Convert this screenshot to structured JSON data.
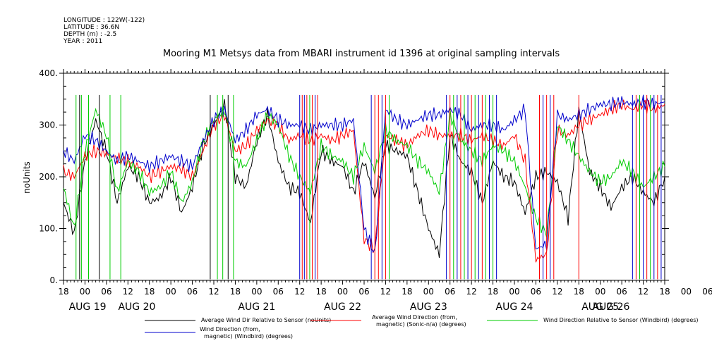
{
  "header": {
    "meta_lines": [
      "LONGITUDE : 122W(-122)",
      "LATITUDE : 36.6N",
      "DEPTH (m) : -2.5",
      "YEAR : 2011"
    ],
    "title": "Mooring M1 Metsys data from MBARI instrument id 1396 at original sampling intervals"
  },
  "chart_data": {
    "type": "line",
    "title": "Mooring M1 Metsys data from MBARI instrument id 1396 at original sampling intervals",
    "ylabel": "noUnits",
    "ylim": [
      0,
      400
    ],
    "yticks": [
      "0.",
      "100.",
      "200.",
      "300.",
      "400."
    ],
    "xlim_hours": [
      0,
      168
    ],
    "x_tick_labels": [
      "18",
      "00",
      "06",
      "12",
      "18",
      "00",
      "06",
      "12",
      "18",
      "00",
      "06",
      "12",
      "18",
      "00",
      "06",
      "12",
      "18",
      "00",
      "06",
      "12",
      "18",
      "00",
      "06",
      "12",
      "18",
      "00",
      "06",
      "12",
      "18",
      "00",
      "06",
      "12",
      "18"
    ],
    "date_labels": [
      "AUG 19",
      "AUG 20",
      "AUG 21",
      "AUG 22",
      "AUG 23",
      "AUG 24",
      "AUG 25",
      "AUG 26"
    ],
    "grid": false,
    "legend_position": "bottom",
    "series": [
      {
        "name": "Average Wind Dir Relative to Sensor (noUnits)",
        "color": "#000000",
        "x": [
          0,
          3,
          6,
          9,
          12,
          15,
          18,
          21,
          24,
          27,
          30,
          33,
          36,
          39,
          42,
          45,
          48,
          51,
          54,
          57,
          60,
          63,
          66,
          69,
          72,
          75,
          78,
          81,
          84,
          87,
          90,
          93,
          96,
          99,
          102,
          105,
          108,
          111,
          114,
          117,
          120,
          123,
          126,
          129,
          132,
          135,
          138,
          141,
          144,
          147,
          150,
          153,
          156,
          159,
          162,
          165,
          168
        ],
        "y": [
          150,
          90,
          230,
          310,
          250,
          150,
          220,
          200,
          150,
          160,
          200,
          130,
          180,
          260,
          300,
          340,
          200,
          180,
          270,
          320,
          230,
          180,
          170,
          110,
          250,
          230,
          220,
          170,
          230,
          160,
          260,
          250,
          240,
          170,
          100,
          50,
          280,
          230,
          210,
          150,
          230,
          200,
          190,
          130,
          200,
          210,
          190,
          120,
          330,
          210,
          180,
          140,
          180,
          200,
          170,
          150,
          200
        ]
      },
      {
        "name": "Average Wind Direction (from, magnetic) (Sonic-n/a) (degrees)",
        "color": "#ff0000",
        "x": [
          0,
          3,
          6,
          9,
          12,
          15,
          18,
          21,
          24,
          27,
          30,
          33,
          36,
          39,
          42,
          45,
          48,
          51,
          54,
          57,
          60,
          63,
          66,
          69,
          72,
          75,
          78,
          81,
          84,
          87,
          90,
          93,
          96,
          99,
          102,
          105,
          108,
          111,
          114,
          117,
          120,
          123,
          126,
          129,
          132,
          135,
          138,
          141,
          144,
          147,
          150,
          153,
          156,
          159,
          162,
          165,
          168
        ],
        "y": [
          210,
          200,
          240,
          250,
          245,
          235,
          230,
          220,
          200,
          210,
          220,
          215,
          200,
          250,
          300,
          320,
          250,
          260,
          290,
          310,
          300,
          270,
          280,
          270,
          280,
          270,
          280,
          290,
          80,
          60,
          280,
          270,
          260,
          280,
          290,
          280,
          280,
          280,
          270,
          280,
          270,
          260,
          280,
          230,
          40,
          50,
          290,
          280,
          300,
          310,
          320,
          330,
          340,
          330,
          340,
          330,
          340
        ]
      },
      {
        "name": "Wind Direction Relative to Sensor (Windbird) (degrees)",
        "color": "#00cc00",
        "x": [
          0,
          3,
          6,
          9,
          12,
          15,
          18,
          21,
          24,
          27,
          30,
          33,
          36,
          39,
          42,
          45,
          48,
          51,
          54,
          57,
          60,
          63,
          66,
          69,
          72,
          75,
          78,
          81,
          84,
          87,
          90,
          93,
          96,
          99,
          102,
          105,
          108,
          111,
          114,
          117,
          120,
          123,
          126,
          129,
          132,
          135,
          138,
          141,
          144,
          147,
          150,
          153,
          156,
          159,
          162,
          165,
          168
        ],
        "y": [
          180,
          100,
          250,
          330,
          280,
          170,
          230,
          210,
          170,
          180,
          210,
          150,
          190,
          270,
          310,
          330,
          230,
          220,
          270,
          320,
          300,
          240,
          200,
          170,
          260,
          240,
          230,
          200,
          260,
          210,
          290,
          270,
          260,
          230,
          210,
          170,
          320,
          270,
          250,
          230,
          260,
          250,
          230,
          180,
          120,
          90,
          300,
          270,
          240,
          210,
          190,
          200,
          230,
          210,
          180,
          200,
          220
        ]
      },
      {
        "name": "Wind Direction (from, magnetic) (Windbird) (degrees)",
        "color": "#0000cc",
        "x": [
          0,
          3,
          6,
          9,
          12,
          15,
          18,
          21,
          24,
          27,
          30,
          33,
          36,
          39,
          42,
          45,
          48,
          51,
          54,
          57,
          60,
          63,
          66,
          69,
          72,
          75,
          78,
          81,
          84,
          87,
          90,
          93,
          96,
          99,
          102,
          105,
          108,
          111,
          114,
          117,
          120,
          123,
          126,
          129,
          132,
          135,
          138,
          141,
          144,
          147,
          150,
          153,
          156,
          159,
          162,
          165,
          168
        ],
        "y": [
          250,
          230,
          280,
          270,
          250,
          230,
          240,
          230,
          220,
          230,
          240,
          230,
          220,
          270,
          310,
          330,
          270,
          290,
          320,
          330,
          310,
          300,
          300,
          290,
          300,
          300,
          300,
          310,
          100,
          50,
          330,
          310,
          300,
          310,
          320,
          320,
          330,
          320,
          290,
          300,
          300,
          290,
          310,
          330,
          60,
          70,
          320,
          310,
          320,
          330,
          340,
          340,
          345,
          340,
          345,
          340,
          345
        ]
      }
    ],
    "spikes": [
      {
        "hour": 3.5,
        "color": "#00cc00"
      },
      {
        "hour": 4.5,
        "color": "#000000"
      },
      {
        "hour": 5,
        "color": "#00cc00"
      },
      {
        "hour": 7,
        "color": "#00cc00"
      },
      {
        "hour": 10,
        "color": "#000000"
      },
      {
        "hour": 13,
        "color": "#00cc00"
      },
      {
        "hour": 16,
        "color": "#00cc00"
      },
      {
        "hour": 41,
        "color": "#000000"
      },
      {
        "hour": 43,
        "color": "#00cc00"
      },
      {
        "hour": 44.5,
        "color": "#00cc00"
      },
      {
        "hour": 46,
        "color": "#000000"
      },
      {
        "hour": 47.5,
        "color": "#00cc00"
      },
      {
        "hour": 66,
        "color": "#0000cc"
      },
      {
        "hour": 66.7,
        "color": "#ff0000"
      },
      {
        "hour": 67.3,
        "color": "#0000cc"
      },
      {
        "hour": 68,
        "color": "#ff0000"
      },
      {
        "hour": 68.8,
        "color": "#00cc00"
      },
      {
        "hour": 69.5,
        "color": "#ff0000"
      },
      {
        "hour": 70.3,
        "color": "#0000cc"
      },
      {
        "hour": 71,
        "color": "#ff0000"
      },
      {
        "hour": 86,
        "color": "#0000cc"
      },
      {
        "hour": 87,
        "color": "#ff0000"
      },
      {
        "hour": 88,
        "color": "#ff0000"
      },
      {
        "hour": 89,
        "color": "#0000cc"
      },
      {
        "hour": 90,
        "color": "#ff0000"
      },
      {
        "hour": 91,
        "color": "#00cc00"
      },
      {
        "hour": 107,
        "color": "#0000cc"
      },
      {
        "hour": 108,
        "color": "#ff0000"
      },
      {
        "hour": 109,
        "color": "#00cc00"
      },
      {
        "hour": 110,
        "color": "#0000cc"
      },
      {
        "hour": 111,
        "color": "#ff0000"
      },
      {
        "hour": 112,
        "color": "#00cc00"
      },
      {
        "hour": 113,
        "color": "#0000cc"
      },
      {
        "hour": 114,
        "color": "#ff0000"
      },
      {
        "hour": 115,
        "color": "#00cc00"
      },
      {
        "hour": 116,
        "color": "#0000cc"
      },
      {
        "hour": 117,
        "color": "#ff0000"
      },
      {
        "hour": 118,
        "color": "#00cc00"
      },
      {
        "hour": 119,
        "color": "#0000cc"
      },
      {
        "hour": 120,
        "color": "#00cc00"
      },
      {
        "hour": 121,
        "color": "#0000cc"
      },
      {
        "hour": 133,
        "color": "#ff0000"
      },
      {
        "hour": 134,
        "color": "#0000cc"
      },
      {
        "hour": 135,
        "color": "#ff0000"
      },
      {
        "hour": 136,
        "color": "#0000cc"
      },
      {
        "hour": 137,
        "color": "#ff0000"
      },
      {
        "hour": 144,
        "color": "#ff0000"
      },
      {
        "hour": 159,
        "color": "#0000cc"
      },
      {
        "hour": 160,
        "color": "#ff0000"
      },
      {
        "hour": 161,
        "color": "#00cc00"
      },
      {
        "hour": 162,
        "color": "#0000cc"
      },
      {
        "hour": 163,
        "color": "#ff0000"
      },
      {
        "hour": 164,
        "color": "#00cc00"
      },
      {
        "hour": 165,
        "color": "#0000cc"
      },
      {
        "hour": 166,
        "color": "#ff0000"
      },
      {
        "hour": 167,
        "color": "#0000cc"
      }
    ]
  },
  "legend": [
    {
      "line1": "Average Wind Dir Relative to Sensor (noUnits)",
      "line2": "",
      "color": "#000000"
    },
    {
      "line1": "Average Wind Direction (from,",
      "line2": "magnetic) (Sonic-n/a) (degrees)",
      "color": "#ff0000"
    },
    {
      "line1": "Wind Direction Relative to Sensor (Windbird) (degrees)",
      "line2": "",
      "color": "#00cc00"
    },
    {
      "line1": "Wind Direction (from,",
      "line2": "magnetic) (Windbird) (degrees)",
      "color": "#0000cc"
    }
  ]
}
